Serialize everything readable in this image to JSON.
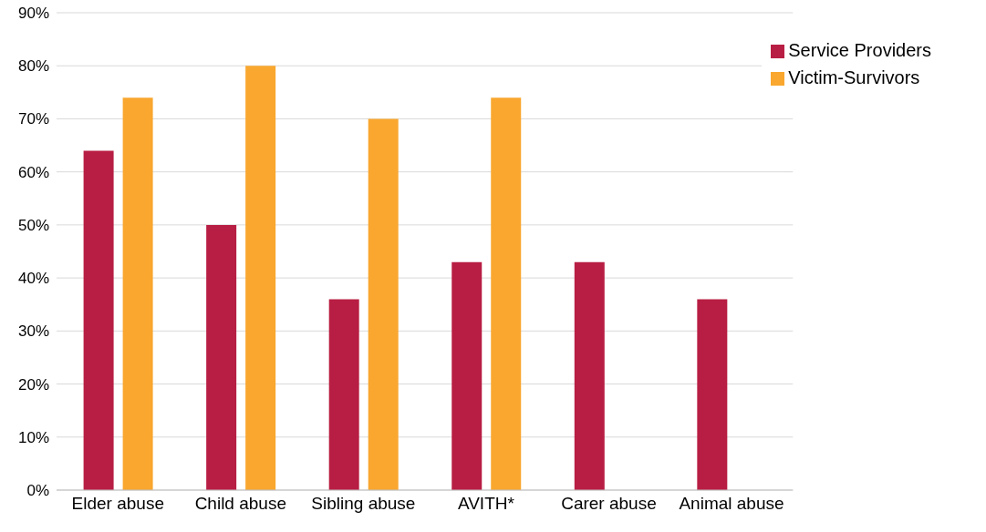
{
  "chart_data": {
    "type": "bar",
    "categories": [
      "Elder abuse",
      "Child abuse",
      "Sibling abuse",
      "AVITH*",
      "Carer abuse",
      "Animal abuse"
    ],
    "series": [
      {
        "name": "Service Providers",
        "color": "#b81e43",
        "values": [
          64,
          50,
          36,
          43,
          43,
          36
        ]
      },
      {
        "name": "Victim-Survivors",
        "color": "#f9a72f",
        "values": [
          74,
          80,
          70,
          74,
          null,
          null
        ]
      }
    ],
    "ylim": [
      0,
      90
    ],
    "yticks": [
      {
        "value": 0,
        "label": "0%"
      },
      {
        "value": 10,
        "label": "10%"
      },
      {
        "value": 20,
        "label": "20%"
      },
      {
        "value": 30,
        "label": "30%"
      },
      {
        "value": 40,
        "label": "40%"
      },
      {
        "value": 50,
        "label": "50%"
      },
      {
        "value": 60,
        "label": "60%"
      },
      {
        "value": 70,
        "label": "70%"
      },
      {
        "value": 80,
        "label": "80%"
      },
      {
        "value": 90,
        "label": "90%"
      }
    ],
    "grid": "y",
    "legend": "top right"
  }
}
